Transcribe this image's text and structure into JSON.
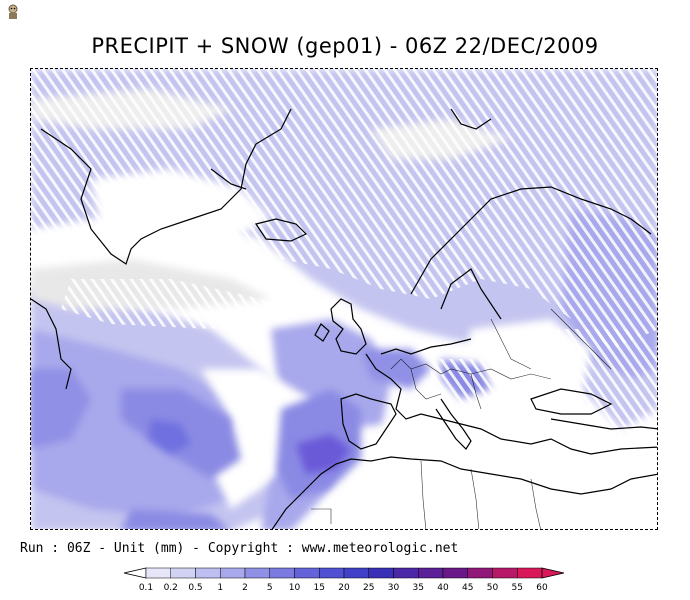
{
  "title": "PRECIPIT + SNOW (gep01) - 06Z 22/DEC/2009",
  "footer": "Run : 06Z - Unit (mm) - Copyright : www.meteorologic.net",
  "legend": {
    "unit": "mm",
    "levels": [
      "0.1",
      "0.2",
      "0.5",
      "1",
      "2",
      "5",
      "10",
      "15",
      "20",
      "25",
      "30",
      "35",
      "40",
      "45",
      "50",
      "55",
      "60"
    ],
    "colors": [
      "#f2f2f2",
      "#e6e6f8",
      "#d2d2f4",
      "#bebef0",
      "#a8a8ec",
      "#9090e6",
      "#7a7ae0",
      "#6464da",
      "#5050d2",
      "#4040c8",
      "#3a30b8",
      "#4a28a8",
      "#5a2098",
      "#6a1888",
      "#901878",
      "#b81868",
      "#d81858"
    ],
    "arrow_right_color": "#d81858",
    "arrow_left_color": "#ffffff"
  },
  "map": {
    "ocean_color": "#ffffff",
    "snow_hatch_color": "#ffffff",
    "coast_color": "#000000"
  },
  "icon": "person-icon"
}
